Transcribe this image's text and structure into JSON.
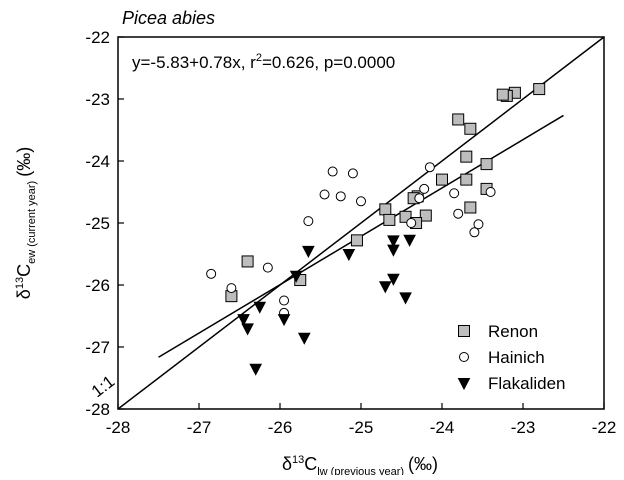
{
  "chart_data": {
    "type": "scatter",
    "title": "Picea abies",
    "xlabel": {
      "main": "δ",
      "sup": "13",
      "base": "C",
      "sub": "lw (previous year)",
      "unit": "(‰)"
    },
    "ylabel": {
      "main": "δ",
      "sup": "13",
      "base": "C",
      "sub": "ew (current year)",
      "unit": "(‰)"
    },
    "xlim": [
      -28,
      -22
    ],
    "ylim": [
      -28,
      -22
    ],
    "xticks": [
      "-28",
      "-27",
      "-26",
      "-25",
      "-24",
      "-23",
      "-22"
    ],
    "yticks": [
      "-28",
      "-27",
      "-26",
      "-25",
      "-24",
      "-23",
      "-22"
    ],
    "grid": false,
    "legend_position": "bottom-right",
    "annotation": {
      "prefix": "y=-5.83+0.78x, r",
      "sup": "2",
      "suffix": "=0.626, p=0.0000"
    },
    "one_to_one_label": "1:1",
    "lines": [
      {
        "kind": "identity",
        "x": [
          -28,
          -22
        ],
        "y": [
          -28,
          -22
        ]
      },
      {
        "kind": "regression",
        "x": [
          -27.5,
          -22.5
        ],
        "y": [
          -27.165,
          -23.265
        ]
      }
    ],
    "series": [
      {
        "name": "Renon",
        "marker": "square",
        "color": "#bdbdbd",
        "points": [
          [
            -22.8,
            -22.84
          ],
          [
            -23.1,
            -22.9
          ],
          [
            -23.2,
            -22.95
          ],
          [
            -23.25,
            -22.93
          ],
          [
            -23.8,
            -23.33
          ],
          [
            -23.65,
            -23.48
          ],
          [
            -23.45,
            -24.05
          ],
          [
            -23.7,
            -23.93
          ],
          [
            -23.7,
            -24.3
          ],
          [
            -24.0,
            -24.3
          ],
          [
            -24.3,
            -24.57
          ],
          [
            -24.35,
            -24.6
          ],
          [
            -23.45,
            -24.45
          ],
          [
            -23.65,
            -24.75
          ],
          [
            -24.2,
            -24.88
          ],
          [
            -24.45,
            -24.9
          ],
          [
            -24.32,
            -25.0
          ],
          [
            -24.7,
            -24.78
          ],
          [
            -24.65,
            -24.95
          ],
          [
            -25.05,
            -25.28
          ],
          [
            -26.4,
            -25.62
          ],
          [
            -26.6,
            -26.18
          ],
          [
            -25.75,
            -25.92
          ]
        ]
      },
      {
        "name": "Hainich",
        "marker": "circle",
        "color": "#ffffff",
        "points": [
          [
            -25.35,
            -24.17
          ],
          [
            -25.1,
            -24.2
          ],
          [
            -25.45,
            -24.54
          ],
          [
            -25.25,
            -24.57
          ],
          [
            -25.0,
            -24.65
          ],
          [
            -24.15,
            -24.1
          ],
          [
            -24.22,
            -24.45
          ],
          [
            -24.28,
            -24.6
          ],
          [
            -23.85,
            -24.52
          ],
          [
            -23.4,
            -24.5
          ],
          [
            -23.8,
            -24.85
          ],
          [
            -23.55,
            -25.02
          ],
          [
            -23.6,
            -25.15
          ],
          [
            -24.38,
            -25.0
          ],
          [
            -25.65,
            -24.97
          ],
          [
            -26.15,
            -25.72
          ],
          [
            -26.85,
            -25.82
          ],
          [
            -26.6,
            -26.05
          ],
          [
            -25.95,
            -26.25
          ],
          [
            -25.95,
            -26.45
          ]
        ]
      },
      {
        "name": "Flakaliden",
        "marker": "triangle-down",
        "color": "#000000",
        "points": [
          [
            -25.65,
            -25.45
          ],
          [
            -25.15,
            -25.5
          ],
          [
            -24.6,
            -25.28
          ],
          [
            -24.6,
            -25.43
          ],
          [
            -24.4,
            -25.27
          ],
          [
            -24.6,
            -25.9
          ],
          [
            -24.7,
            -26.02
          ],
          [
            -24.45,
            -26.2
          ],
          [
            -25.8,
            -25.85
          ],
          [
            -26.25,
            -26.35
          ],
          [
            -26.45,
            -26.55
          ],
          [
            -26.4,
            -26.7
          ],
          [
            -25.95,
            -26.55
          ],
          [
            -25.7,
            -26.85
          ],
          [
            -26.3,
            -27.35
          ]
        ]
      }
    ]
  }
}
